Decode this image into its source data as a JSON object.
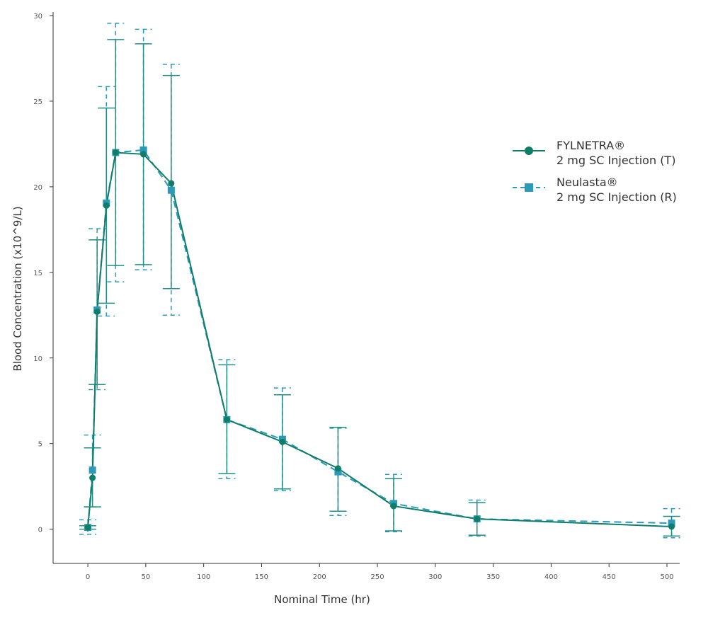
{
  "chart_data": {
    "type": "line",
    "xlabel": "Nominal Time (hr)",
    "ylabel": "Blood Concentration (x10^9/L)",
    "xlim": [
      -30,
      511
    ],
    "ylim": [
      -2,
      30
    ],
    "xticks": [
      0,
      50,
      100,
      150,
      200,
      250,
      300,
      350,
      400,
      450,
      500
    ],
    "yticks": [
      0,
      5,
      10,
      15,
      20,
      25,
      30
    ],
    "grid": false,
    "legend_position": "right",
    "series": [
      {
        "name": "FYLNETRA®",
        "name_line2": "2 mg SC Injection (T)",
        "color": "#0f7d68",
        "marker": "circle",
        "line": "solid",
        "x": [
          0,
          4,
          8,
          16,
          24,
          48,
          72,
          120,
          168,
          216,
          264,
          336,
          504
        ],
        "y": [
          0.1,
          3.0,
          12.7,
          18.9,
          22.0,
          21.9,
          20.2,
          6.4,
          5.1,
          3.55,
          1.35,
          0.6,
          0.15
        ],
        "upper": [
          0.2,
          4.75,
          16.9,
          24.6,
          28.6,
          28.35,
          26.5,
          9.6,
          7.85,
          5.95,
          2.95,
          1.55,
          0.75
        ],
        "lower": [
          0.0,
          1.3,
          8.45,
          13.2,
          15.4,
          15.45,
          14.05,
          3.25,
          2.35,
          1.05,
          -0.1,
          -0.35,
          -0.4
        ]
      },
      {
        "name": "Neulasta®",
        "name_line2": "2 mg SC Injection (R)",
        "color": "#2b9ab8",
        "marker": "square",
        "line": "dashed",
        "x": [
          0,
          4,
          8,
          16,
          24,
          48,
          72,
          120,
          168,
          216,
          264,
          336,
          504
        ],
        "y": [
          0.1,
          3.45,
          12.8,
          19.05,
          22.0,
          22.15,
          19.8,
          6.4,
          5.25,
          3.35,
          1.5,
          0.6,
          0.35
        ],
        "upper": [
          0.55,
          5.5,
          17.55,
          25.85,
          29.55,
          29.2,
          27.15,
          9.9,
          8.25,
          5.9,
          3.2,
          1.7,
          1.2
        ],
        "lower": [
          -0.3,
          1.3,
          8.15,
          12.45,
          14.45,
          15.15,
          12.5,
          2.95,
          2.25,
          0.8,
          -0.15,
          -0.4,
          -0.5
        ]
      }
    ]
  }
}
